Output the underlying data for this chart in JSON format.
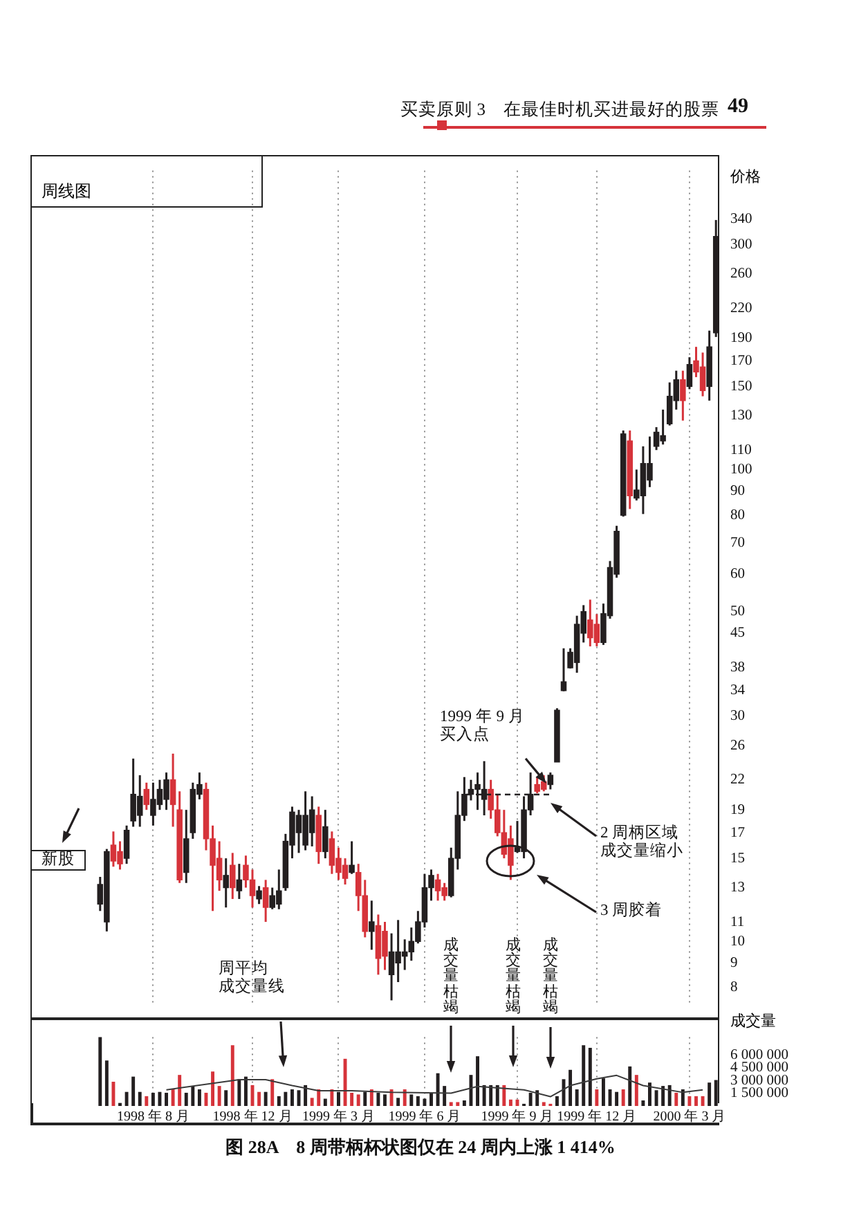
{
  "chart_data": [
    {
      "type": "candlestick",
      "title": "周线图",
      "ylabel": "价格",
      "categories": [
        null,
        null,
        null,
        null,
        null,
        null,
        null,
        null,
        null,
        null,
        null,
        null,
        null,
        null,
        null,
        null,
        null,
        null,
        null,
        null,
        null,
        null,
        null,
        null,
        null,
        null,
        null,
        null,
        null,
        null,
        null,
        null,
        null,
        null,
        null,
        null,
        null,
        null,
        null,
        null,
        null,
        null,
        null,
        null,
        null,
        null,
        null,
        null,
        null,
        null,
        null,
        null,
        null,
        null,
        null,
        null,
        null,
        null,
        null,
        null,
        null,
        null,
        null,
        null,
        null,
        null,
        null,
        null,
        null,
        null,
        null,
        null,
        null,
        null,
        null,
        null,
        null,
        null,
        null,
        null,
        null,
        null,
        null,
        null,
        null,
        null,
        null,
        null,
        null,
        null,
        null,
        null,
        null,
        null
      ],
      "ohlc": [
        [
          12.0,
          13.7,
          11.6,
          13.2
        ],
        [
          11.0,
          15.7,
          10.5,
          15.5
        ],
        [
          16.0,
          17.1,
          14.4,
          14.8
        ],
        [
          15.5,
          16.3,
          14.2,
          14.6
        ],
        [
          15.0,
          17.6,
          14.6,
          17.2
        ],
        [
          18.0,
          24.4,
          17.5,
          20.5
        ],
        [
          18.5,
          22.5,
          17.5,
          20.3
        ],
        [
          21.0,
          21.7,
          19.0,
          19.5
        ],
        [
          18.5,
          21.7,
          17.6,
          20.0
        ],
        [
          19.5,
          22.0,
          19.0,
          21.0
        ],
        [
          20.0,
          22.8,
          19.0,
          22.0
        ],
        [
          22.0,
          25.0,
          17.5,
          19.5
        ],
        [
          19.0,
          20.8,
          13.3,
          13.5
        ],
        [
          14.0,
          19.0,
          13.3,
          16.5
        ],
        [
          17.0,
          21.7,
          16.5,
          21.0
        ],
        [
          20.5,
          22.8,
          20.0,
          21.5
        ],
        [
          21.0,
          21.7,
          15.6,
          16.5
        ],
        [
          16.5,
          17.6,
          11.6,
          14.5
        ],
        [
          15.0,
          16.3,
          12.8,
          13.5
        ],
        [
          13.0,
          15.0,
          11.8,
          13.8
        ],
        [
          14.5,
          15.4,
          12.3,
          13.0
        ],
        [
          12.8,
          14.6,
          12.3,
          13.5
        ],
        [
          14.5,
          15.2,
          13.0,
          13.5
        ],
        [
          13.5,
          14.2,
          11.8,
          12.5
        ],
        [
          12.3,
          13.1,
          12.0,
          12.8
        ],
        [
          13.0,
          13.5,
          11.0,
          11.8
        ],
        [
          11.8,
          13.0,
          11.7,
          12.5
        ],
        [
          12.0,
          14.2,
          11.7,
          12.8
        ],
        [
          13.0,
          16.9,
          12.8,
          16.3
        ],
        [
          16.0,
          19.3,
          15.0,
          18.8
        ],
        [
          17.0,
          19.0,
          15.4,
          18.5
        ],
        [
          16.0,
          20.8,
          15.6,
          18.5
        ],
        [
          17.0,
          20.3,
          15.9,
          19.0
        ],
        [
          18.5,
          19.3,
          14.6,
          15.5
        ],
        [
          15.5,
          19.0,
          15.0,
          17.5
        ],
        [
          16.5,
          17.1,
          13.9,
          14.5
        ],
        [
          15.0,
          15.8,
          13.5,
          14.0
        ],
        [
          14.5,
          15.0,
          13.2,
          13.6
        ],
        [
          14.0,
          16.3,
          13.9,
          14.5
        ],
        [
          14.0,
          14.6,
          11.6,
          12.5
        ],
        [
          12.5,
          13.5,
          10.2,
          10.5
        ],
        [
          10.5,
          12.2,
          9.6,
          11.0
        ],
        [
          10.8,
          11.4,
          8.5,
          9.2
        ],
        [
          10.5,
          11.0,
          8.7,
          9.3
        ],
        [
          8.5,
          10.4,
          7.5,
          9.5
        ],
        [
          9.0,
          11.1,
          8.2,
          9.5
        ],
        [
          9.3,
          10.1,
          8.7,
          9.5
        ],
        [
          9.5,
          10.7,
          9.1,
          10.0
        ],
        [
          10.0,
          11.6,
          9.9,
          11.0
        ],
        [
          11.0,
          13.9,
          10.7,
          13.0
        ],
        [
          13.0,
          14.2,
          12.2,
          13.8
        ],
        [
          13.5,
          13.9,
          12.2,
          12.8
        ],
        [
          13.0,
          13.3,
          12.2,
          12.5
        ],
        [
          12.5,
          15.8,
          12.4,
          15.0
        ],
        [
          15.0,
          20.8,
          14.2,
          18.5
        ],
        [
          18.5,
          22.3,
          18.0,
          20.5
        ],
        [
          20.5,
          22.0,
          19.9,
          21.0
        ],
        [
          21.0,
          22.8,
          19.0,
          21.5
        ],
        [
          20.0,
          24.1,
          18.5,
          21.0
        ],
        [
          21.0,
          22.0,
          18.2,
          19.0
        ],
        [
          19.0,
          20.5,
          16.7,
          17.0
        ],
        [
          17.0,
          19.0,
          15.0,
          15.3
        ],
        [
          16.5,
          17.6,
          13.5,
          14.5
        ],
        [
          15.5,
          18.0,
          15.4,
          15.8
        ],
        [
          15.5,
          20.3,
          15.0,
          19.0
        ],
        [
          19.0,
          22.8,
          18.5,
          20.5
        ],
        [
          21.5,
          22.3,
          20.6,
          20.8
        ],
        [
          21.8,
          22.5,
          20.8,
          21.0
        ],
        [
          21.5,
          22.8,
          21.0,
          22.5
        ],
        [
          24.0,
          31.2,
          24.0,
          30.9
        ],
        [
          34.0,
          41.8,
          33.9,
          35.5
        ],
        [
          38.0,
          41.8,
          37.9,
          41.0
        ],
        [
          39.0,
          49.0,
          37.1,
          47.0
        ],
        [
          45.0,
          51.6,
          43.0,
          50.0
        ],
        [
          48.0,
          53.0,
          42.2,
          44.0
        ],
        [
          47.0,
          49.4,
          42.2,
          43.0
        ],
        [
          43.0,
          52.0,
          42.5,
          49.5
        ],
        [
          49.0,
          64.0,
          48.3,
          62.0
        ],
        [
          60.0,
          76.0,
          59.0,
          74.0
        ],
        [
          80.0,
          121,
          79.5,
          119
        ],
        [
          115,
          121,
          82.5,
          88
        ],
        [
          87,
          100,
          86,
          90.5
        ],
        [
          88,
          112,
          80.5,
          103
        ],
        [
          95,
          117.5,
          91.8,
          103
        ],
        [
          112,
          123,
          110,
          120
        ],
        [
          115,
          134,
          113,
          118
        ],
        [
          125,
          153,
          124,
          143
        ],
        [
          140,
          162,
          134,
          155
        ],
        [
          155,
          162,
          127,
          140
        ],
        [
          150,
          173,
          148,
          167
        ],
        [
          170,
          182,
          157,
          161
        ],
        [
          165,
          177,
          143,
          147
        ],
        [
          150,
          197,
          140,
          182
        ],
        [
          195,
          338,
          191,
          312
        ]
      ],
      "colors": [
        "#231f20",
        "#231f20",
        "#d6333a",
        "#d6333a",
        "#231f20",
        "#231f20",
        "#231f20",
        "#d6333a",
        "#231f20",
        "#231f20",
        "#231f20",
        "#d6333a",
        "#d6333a",
        "#231f20",
        "#231f20",
        "#231f20",
        "#d6333a",
        "#d6333a",
        "#d6333a",
        "#231f20",
        "#d6333a",
        "#231f20",
        "#d6333a",
        "#d6333a",
        "#231f20",
        "#d6333a",
        "#231f20",
        "#231f20",
        "#231f20",
        "#231f20",
        "#231f20",
        "#231f20",
        "#231f20",
        "#d6333a",
        "#231f20",
        "#d6333a",
        "#d6333a",
        "#d6333a",
        "#231f20",
        "#d6333a",
        "#d6333a",
        "#231f20",
        "#d6333a",
        "#d6333a",
        "#231f20",
        "#231f20",
        "#231f20",
        "#231f20",
        "#231f20",
        "#231f20",
        "#231f20",
        "#d6333a",
        "#d6333a",
        "#231f20",
        "#231f20",
        "#231f20",
        "#231f20",
        "#231f20",
        "#231f20",
        "#d6333a",
        "#d6333a",
        "#d6333a",
        "#d6333a",
        "#231f20",
        "#231f20",
        "#231f20",
        "#d6333a",
        "#d6333a",
        "#231f20",
        "#231f20",
        "#231f20",
        "#231f20",
        "#231f20",
        "#231f20",
        "#d6333a",
        "#d6333a",
        "#231f20",
        "#231f20",
        "#231f20",
        "#231f20",
        "#d6333a",
        "#231f20",
        "#231f20",
        "#231f20",
        "#231f20",
        "#231f20",
        "#231f20",
        "#231f20",
        "#d6333a",
        "#231f20",
        "#d6333a",
        "#d6333a",
        "#231f20",
        "#231f20"
      ],
      "log": "y",
      "ylim": [
        7.3,
        430
      ],
      "yticks": [
        8,
        9,
        10,
        11,
        13,
        15,
        17,
        19,
        22,
        26,
        30,
        34,
        38,
        45,
        50,
        60,
        70,
        80,
        90,
        100,
        110,
        130,
        150,
        170,
        190,
        220,
        260,
        300,
        340
      ],
      "grid": "x",
      "tick_labels": "y",
      "annotations": [
        "买卖原则 3　在最佳时机买进最好的股票",
        "49",
        "新股",
        "1999 年 9 月买入点",
        "2 周柄区域成交量缩小",
        "3 周胶着"
      ]
    },
    {
      "type": "bar",
      "ylabel": "成交量",
      "categories": [
        null,
        null,
        null,
        null,
        null,
        null,
        null,
        null,
        "1998 年 8 月",
        null,
        null,
        null,
        null,
        null,
        null,
        null,
        null,
        null,
        null,
        null,
        null,
        null,
        null,
        "1998 年 12 月",
        null,
        null,
        null,
        null,
        null,
        null,
        null,
        null,
        null,
        null,
        null,
        null,
        "1999 年 3 月",
        null,
        null,
        null,
        null,
        null,
        null,
        null,
        null,
        null,
        null,
        null,
        null,
        "1999 年 6 月",
        null,
        null,
        null,
        null,
        null,
        null,
        null,
        null,
        null,
        null,
        null,
        null,
        null,
        "1999 年 9 月",
        null,
        null,
        null,
        null,
        null,
        null,
        null,
        null,
        null,
        null,
        null,
        "1999 年 12 月",
        null,
        null,
        null,
        null,
        null,
        null,
        null,
        null,
        null,
        null,
        null,
        null,
        null,
        "2000 年 3 月",
        null,
        null,
        null,
        null
      ],
      "series": [
        {
          "type": "bar",
          "values": [
            8100000,
            5300000,
            2800000,
            300000,
            1600000,
            3400000,
            1600000,
            1100000,
            1500000,
            1600000,
            1500000,
            1900000,
            3600000,
            1500000,
            2300000,
            1900000,
            1500000,
            4000000,
            2300000,
            1800000,
            7100000,
            3100000,
            3400000,
            2400000,
            1600000,
            1600000,
            3100000,
            1100000,
            1600000,
            1900000,
            1800000,
            2400000,
            900000,
            1900000,
            800000,
            1900000,
            1600000,
            5500000,
            1500000,
            1300000,
            1600000,
            1900000,
            1500000,
            1300000,
            1900000,
            900000,
            1900000,
            1300000,
            1100000,
            800000,
            1500000,
            3800000,
            2300000,
            400000,
            400000,
            600000,
            3600000,
            5800000,
            2400000,
            2400000,
            2400000,
            2400000,
            700000,
            700000,
            200000,
            1500000,
            1800000,
            400000,
            200000,
            1100000,
            3100000,
            4200000,
            1900000,
            7100000,
            6800000,
            1900000,
            3200000,
            1900000,
            1600000,
            1900000,
            4600000,
            3600000,
            600000,
            2700000,
            1800000,
            2300000,
            2400000,
            1500000,
            1900000,
            1100000,
            1100000,
            1100000,
            2700000,
            3000000
          ],
          "colors": [
            "#231f20",
            "#231f20",
            "#d6333a",
            "#231f20",
            "#231f20",
            "#231f20",
            "#231f20",
            "#d6333a",
            "#231f20",
            "#231f20",
            "#231f20",
            "#d6333a",
            "#d6333a",
            "#231f20",
            "#231f20",
            "#231f20",
            "#d6333a",
            "#d6333a",
            "#d6333a",
            "#231f20",
            "#d6333a",
            "#231f20",
            "#231f20",
            "#d6333a",
            "#d6333a",
            "#231f20",
            "#d6333a",
            "#231f20",
            "#231f20",
            "#231f20",
            "#231f20",
            "#231f20",
            "#d6333a",
            "#d6333a",
            "#231f20",
            "#d6333a",
            "#231f20",
            "#d6333a",
            "#d6333a",
            "#d6333a",
            "#231f20",
            "#d6333a",
            "#231f20",
            "#231f20",
            "#d6333a",
            "#231f20",
            "#d6333a",
            "#231f20",
            "#231f20",
            "#231f20",
            "#231f20",
            "#231f20",
            "#231f20",
            "#d6333a",
            "#d6333a",
            "#231f20",
            "#231f20",
            "#231f20",
            "#231f20",
            "#231f20",
            "#231f20",
            "#d6333a",
            "#d6333a",
            "#d6333a",
            "#231f20",
            "#231f20",
            "#231f20",
            "#d6333a",
            "#d6333a",
            "#231f20",
            "#231f20",
            "#231f20",
            "#231f20",
            "#231f20",
            "#231f20",
            "#d6333a",
            "#231f20",
            "#231f20",
            "#231f20",
            "#d6333a",
            "#231f20",
            "#d6333a",
            "#231f20",
            "#231f20",
            "#231f20",
            "#231f20",
            "#231f20",
            "#d6333a",
            "#231f20",
            "#d6333a",
            "#d6333a",
            "#d6333a",
            "#231f20",
            "#231f20"
          ]
        },
        {
          "type": "line",
          "color": "#3a3a3a",
          "values": [
            null,
            null,
            null,
            null,
            null,
            null,
            null,
            null,
            null,
            null,
            1900000,
            null,
            null,
            null,
            null,
            null,
            null,
            null,
            null,
            null,
            null,
            3100000,
            null,
            null,
            null,
            3100000,
            null,
            null,
            null,
            2400000,
            null,
            null,
            null,
            1800000,
            null,
            null,
            null,
            null,
            1800000,
            null,
            null,
            null,
            null,
            null,
            1600000,
            null,
            null,
            null,
            null,
            null,
            null,
            null,
            null,
            1500000,
            null,
            null,
            null,
            2300000,
            null,
            null,
            null,
            null,
            null,
            null,
            1900000,
            null,
            null,
            null,
            1100000,
            null,
            null,
            2400000,
            null,
            null,
            null,
            3200000,
            null,
            null,
            3600000,
            null,
            null,
            null,
            2400000,
            null,
            null,
            null,
            null,
            null,
            1600000,
            null,
            null,
            1900000,
            null,
            null
          ]
        }
      ],
      "ylim": [
        0,
        8100000
      ],
      "yticks": [
        {
          "value": 1500000,
          "label": "1 500 000"
        },
        {
          "value": 3000000,
          "label": "3 000 000"
        },
        {
          "value": 4500000,
          "label": "4 500 000"
        },
        {
          "value": 6000000,
          "label": "6 000 000"
        }
      ],
      "grid": "x",
      "annotations": [
        "周平均成交量线",
        "成交量枯竭",
        "成交量枯竭",
        "成交量枯竭",
        "图 28A　8 周带柄杯状图仅在 24 周内上涨 1 414%"
      ]
    }
  ]
}
